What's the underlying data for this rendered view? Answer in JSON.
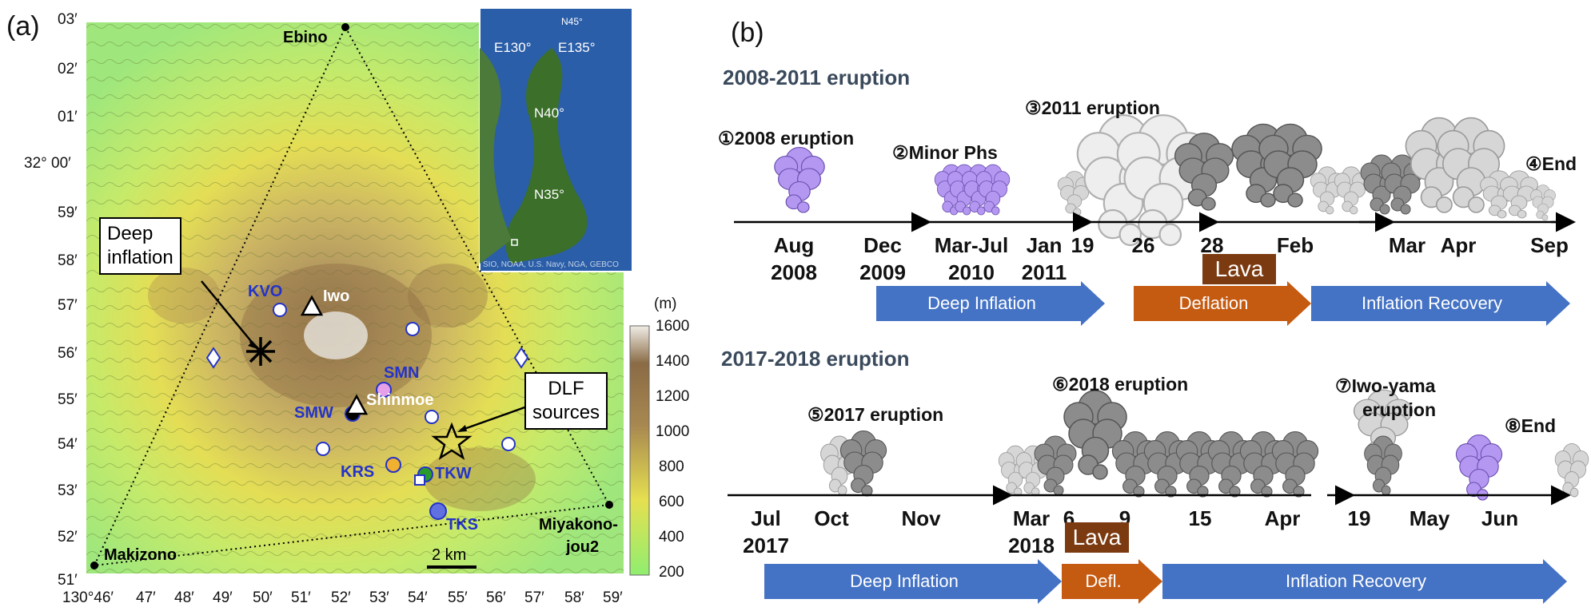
{
  "panel_a": {
    "label": "(a)",
    "lat_ticks": [
      "03′",
      "02′",
      "01′",
      "32° 00′",
      "59′",
      "58′",
      "57′",
      "56′",
      "55′",
      "54′",
      "53′",
      "52′",
      "51′"
    ],
    "lon_ticks": [
      "130°46′",
      "47′",
      "48′",
      "49′",
      "50′",
      "51′",
      "52′",
      "53′",
      "54′",
      "55′",
      "56′",
      "57′",
      "58′",
      "59′"
    ],
    "stations": {
      "ebino": "Ebino",
      "makizono": "Makizono",
      "miyakonojou_1": "Miyakono-",
      "miyakonojou_2": "jou2",
      "kvo": "KVO",
      "iwo": "Iwo",
      "smn": "SMN",
      "shinmoe": "Shinmoe",
      "smw": "SMW",
      "krs": "KRS",
      "tkw": "TKW",
      "tks": "TKS"
    },
    "callouts": {
      "deep_1": "Deep",
      "deep_2": "inflation",
      "dlf_1": "DLF",
      "dlf_2": "sources"
    },
    "scale_bar": "2 km",
    "colorbar": {
      "unit": "(m)",
      "ticks": [
        "1600",
        "1400",
        "1200",
        "1000",
        "800",
        "600",
        "400",
        "200"
      ]
    },
    "inset": {
      "e130": "E130°",
      "e135": "E135°",
      "n45": "N45°",
      "n40": "N40°",
      "n35": "N35°",
      "credit": "SIO, NOAA, U.S. Navy, NGA, GEBCO"
    }
  },
  "panel_b": {
    "label": "(b)",
    "title_1": "2008-2011 eruption",
    "title_2": "2017-2018 eruption",
    "top_events": {
      "e1": "①2008 eruption",
      "e2": "②Minor Phs",
      "e3": "③2011 eruption",
      "e4": "④End"
    },
    "top_ticks": {
      "aug": "Aug\n2008",
      "dec": "Dec\n2009",
      "marjul": "Mar-Jul\n2010",
      "jan": "Jan\n2011",
      "d19": "19",
      "d26": "26",
      "d28": "28",
      "feb": "Feb",
      "mar": "Mar",
      "apr": "Apr",
      "sep": "Sep"
    },
    "lava": "Lava",
    "top_phases": {
      "p1": "Deep Inflation",
      "p2": "Deflation",
      "p3": "Inflation Recovery"
    },
    "bottom_events": {
      "e5": "⑤2017 eruption",
      "e6": "⑥2018 eruption",
      "e7a": "⑦Iwo-yama",
      "e7b": "eruption",
      "e8": "⑧End"
    },
    "bottom_ticks": {
      "jul": "Jul\n2017",
      "oct": "Oct",
      "nov": "Nov",
      "mar": "Mar\n2018",
      "d6": "6",
      "d9": "9",
      "d15": "15",
      "apr": "Apr",
      "d19": "19",
      "may": "May",
      "jun": "Jun"
    },
    "bottom_phases": {
      "p1": "Deep Inflation",
      "p2": "Defl.",
      "p3": "Inflation Recovery"
    },
    "colors": {
      "phase_blue": "#4472c4",
      "phase_orange": "#c55a11",
      "lava": "#7b3a10",
      "purple_plume": "#b497f0",
      "dark_plume": "#8c8c8c",
      "light_plume": "#d6d6d6"
    }
  }
}
